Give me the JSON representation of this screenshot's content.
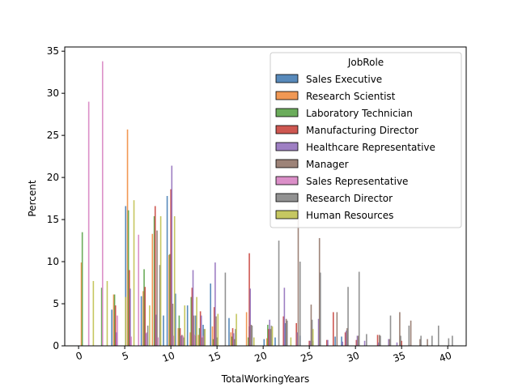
{
  "chart_data": {
    "type": "bar",
    "subtype": "grouped histogram (dodge), percent per hue",
    "xlabel": "TotalWorkingYears",
    "ylabel": "Percent",
    "xlim": [
      -1.5,
      42
    ],
    "ylim": [
      0,
      35.5
    ],
    "xticks": [
      0,
      5,
      10,
      15,
      20,
      25,
      30,
      35,
      40
    ],
    "yticks": [
      0,
      5,
      10,
      15,
      20,
      25,
      30,
      35
    ],
    "xtick_rotation": "slanted ~20 degrees",
    "legend_title": "JobRole",
    "legend_placement": "upper right",
    "grid": false,
    "series": [
      {
        "name": "Sales Executive",
        "color": "#3b75af",
        "points": [
          [
            3.6,
            4.3
          ],
          [
            5.1,
            16.6
          ],
          [
            6.8,
            5.9
          ],
          [
            9.2,
            3.6
          ],
          [
            9.6,
            17.8
          ],
          [
            10.5,
            6.2
          ],
          [
            11.8,
            4.8
          ],
          [
            12.7,
            3.6
          ],
          [
            13.5,
            2.5
          ],
          [
            14.3,
            7.4
          ],
          [
            16.3,
            3.3
          ],
          [
            18.5,
            2.3
          ],
          [
            20.1,
            0.8
          ],
          [
            21.3,
            1.0
          ],
          [
            22.4,
            2.7
          ],
          [
            24.0,
            1.2
          ],
          [
            25.4,
            0.6
          ],
          [
            27.8,
            1.1
          ],
          [
            28.5,
            1.1
          ]
        ]
      },
      {
        "name": "Research Scientist",
        "color": "#ef8636",
        "points": [
          [
            0.3,
            9.9
          ],
          [
            3.8,
            6.1
          ],
          [
            5.3,
            25.7
          ],
          [
            7.0,
            6.5
          ],
          [
            8.0,
            13.3
          ],
          [
            9.8,
            10.8
          ],
          [
            10.8,
            2.1
          ],
          [
            12.1,
            1.6
          ],
          [
            13.0,
            1.3
          ],
          [
            14.5,
            2.3
          ],
          [
            16.5,
            1.6
          ],
          [
            18.2,
            4.0
          ],
          [
            20.4,
            0.9
          ]
        ]
      },
      {
        "name": "Laboratory Technician",
        "color": "#519e3e",
        "points": [
          [
            0.4,
            13.5
          ],
          [
            2.5,
            6.9
          ],
          [
            3.9,
            6.1
          ],
          [
            5.4,
            16.1
          ],
          [
            7.1,
            9.1
          ],
          [
            8.2,
            15.4
          ],
          [
            9.9,
            10.9
          ],
          [
            10.9,
            3.6
          ],
          [
            12.2,
            5.8
          ],
          [
            13.1,
            2.1
          ],
          [
            14.6,
            0.8
          ],
          [
            16.6,
            1.1
          ],
          [
            18.4,
            1.0
          ],
          [
            20.5,
            2.5
          ]
        ]
      },
      {
        "name": "Manufacturing Director",
        "color": "#c53a32",
        "points": [
          [
            4.0,
            4.8
          ],
          [
            5.5,
            9.0
          ],
          [
            7.2,
            7.0
          ],
          [
            8.3,
            16.6
          ],
          [
            10.0,
            18.6
          ],
          [
            11.0,
            2.1
          ],
          [
            12.3,
            6.9
          ],
          [
            13.2,
            4.1
          ],
          [
            14.7,
            4.6
          ],
          [
            16.7,
            2.1
          ],
          [
            18.5,
            11.0
          ],
          [
            20.6,
            2.0
          ],
          [
            22.2,
            3.5
          ],
          [
            23.6,
            2.7
          ],
          [
            25.0,
            0.6
          ],
          [
            26.9,
            0.7
          ],
          [
            27.6,
            4.0
          ],
          [
            28.9,
            1.6
          ],
          [
            30.1,
            0.7
          ],
          [
            32.4,
            1.3
          ],
          [
            35.0,
            0.6
          ]
        ]
      },
      {
        "name": "Healthcare Representative",
        "color": "#8d69b8",
        "points": [
          [
            4.1,
            1.6
          ],
          [
            5.6,
            6.8
          ],
          [
            7.3,
            1.5
          ],
          [
            8.4,
            3.7
          ],
          [
            10.1,
            21.4
          ],
          [
            11.1,
            1.2
          ],
          [
            12.4,
            9.0
          ],
          [
            13.3,
            3.6
          ],
          [
            14.8,
            9.9
          ],
          [
            16.8,
            1.5
          ],
          [
            18.6,
            6.8
          ],
          [
            20.7,
            3.1
          ],
          [
            22.3,
            6.9
          ],
          [
            23.7,
            1.6
          ],
          [
            25.1,
            0.6
          ],
          [
            26.0,
            3.2
          ],
          [
            27.0,
            0.7
          ],
          [
            28.6,
            0.5
          ],
          [
            29.0,
            1.8
          ],
          [
            30.2,
            1.2
          ],
          [
            31.0,
            0.6
          ],
          [
            32.5,
            0.4
          ],
          [
            33.6,
            0.8
          ],
          [
            34.5,
            0.4
          ]
        ]
      },
      {
        "name": "Manager",
        "color": "#8c6d60",
        "points": [
          [
            8.5,
            13.7
          ],
          [
            10.2,
            5.0
          ],
          [
            11.2,
            1.3
          ],
          [
            12.5,
            3.6
          ],
          [
            13.4,
            1.0
          ],
          [
            14.9,
            3.5
          ],
          [
            16.9,
            0.8
          ],
          [
            18.7,
            2.5
          ],
          [
            20.8,
            2.0
          ],
          [
            22.5,
            3.2
          ],
          [
            23.8,
            18.3
          ],
          [
            25.2,
            4.9
          ],
          [
            26.1,
            12.8
          ],
          [
            28.0,
            4.0
          ],
          [
            29.1,
            2.1
          ],
          [
            30.3,
            1.2
          ],
          [
            32.6,
            1.3
          ],
          [
            33.7,
            0.8
          ],
          [
            34.8,
            4.0
          ],
          [
            36.0,
            3.0
          ],
          [
            37.0,
            0.8
          ],
          [
            37.8,
            0.8
          ]
        ]
      },
      {
        "name": "Sales Representative",
        "color": "#d57bbe",
        "points": [
          [
            1.1,
            29.0
          ],
          [
            2.6,
            33.8
          ],
          [
            4.2,
            3.6
          ],
          [
            5.7,
            1.1
          ],
          [
            6.5,
            13.2
          ],
          [
            7.4,
            1.6
          ],
          [
            8.6,
            1.0
          ],
          [
            10.3,
            1.2
          ],
          [
            11.3,
            1.2
          ],
          [
            12.6,
            1.3
          ],
          [
            13.5,
            1.2
          ]
        ]
      },
      {
        "name": "Research Director",
        "color": "#7f7f7f",
        "points": [
          [
            7.5,
            2.4
          ],
          [
            8.8,
            9.6
          ],
          [
            11.4,
            1.0
          ],
          [
            12.7,
            1.2
          ],
          [
            13.6,
            2.0
          ],
          [
            15.0,
            1.0
          ],
          [
            15.9,
            8.7
          ],
          [
            17.0,
            2.0
          ],
          [
            18.8,
            2.4
          ],
          [
            20.9,
            2.4
          ],
          [
            21.7,
            12.5
          ],
          [
            22.6,
            3.0
          ],
          [
            24.0,
            10.0
          ],
          [
            25.3,
            3.1
          ],
          [
            26.2,
            8.7
          ],
          [
            29.2,
            7.0
          ],
          [
            30.4,
            8.8
          ],
          [
            31.2,
            1.4
          ],
          [
            32.7,
            1.2
          ],
          [
            33.8,
            3.6
          ],
          [
            34.9,
            1.2
          ],
          [
            35.8,
            2.4
          ],
          [
            37.1,
            1.2
          ],
          [
            38.3,
            1.2
          ],
          [
            39.0,
            2.4
          ],
          [
            40.1,
            0.9
          ],
          [
            40.5,
            1.2
          ]
        ]
      },
      {
        "name": "Human Resources",
        "color": "#bcbd45",
        "points": [
          [
            1.6,
            7.7
          ],
          [
            3.1,
            7.7
          ],
          [
            5.1,
            5.8
          ],
          [
            6.0,
            17.3
          ],
          [
            7.7,
            4.8
          ],
          [
            8.9,
            15.4
          ],
          [
            10.4,
            15.4
          ],
          [
            11.5,
            4.8
          ],
          [
            12.8,
            5.8
          ],
          [
            13.7,
            2.0
          ],
          [
            15.1,
            3.8
          ],
          [
            17.1,
            3.8
          ],
          [
            19.0,
            1.0
          ],
          [
            21.0,
            2.3
          ],
          [
            23.0,
            1.0
          ],
          [
            25.4,
            2.0
          ]
        ]
      }
    ]
  }
}
